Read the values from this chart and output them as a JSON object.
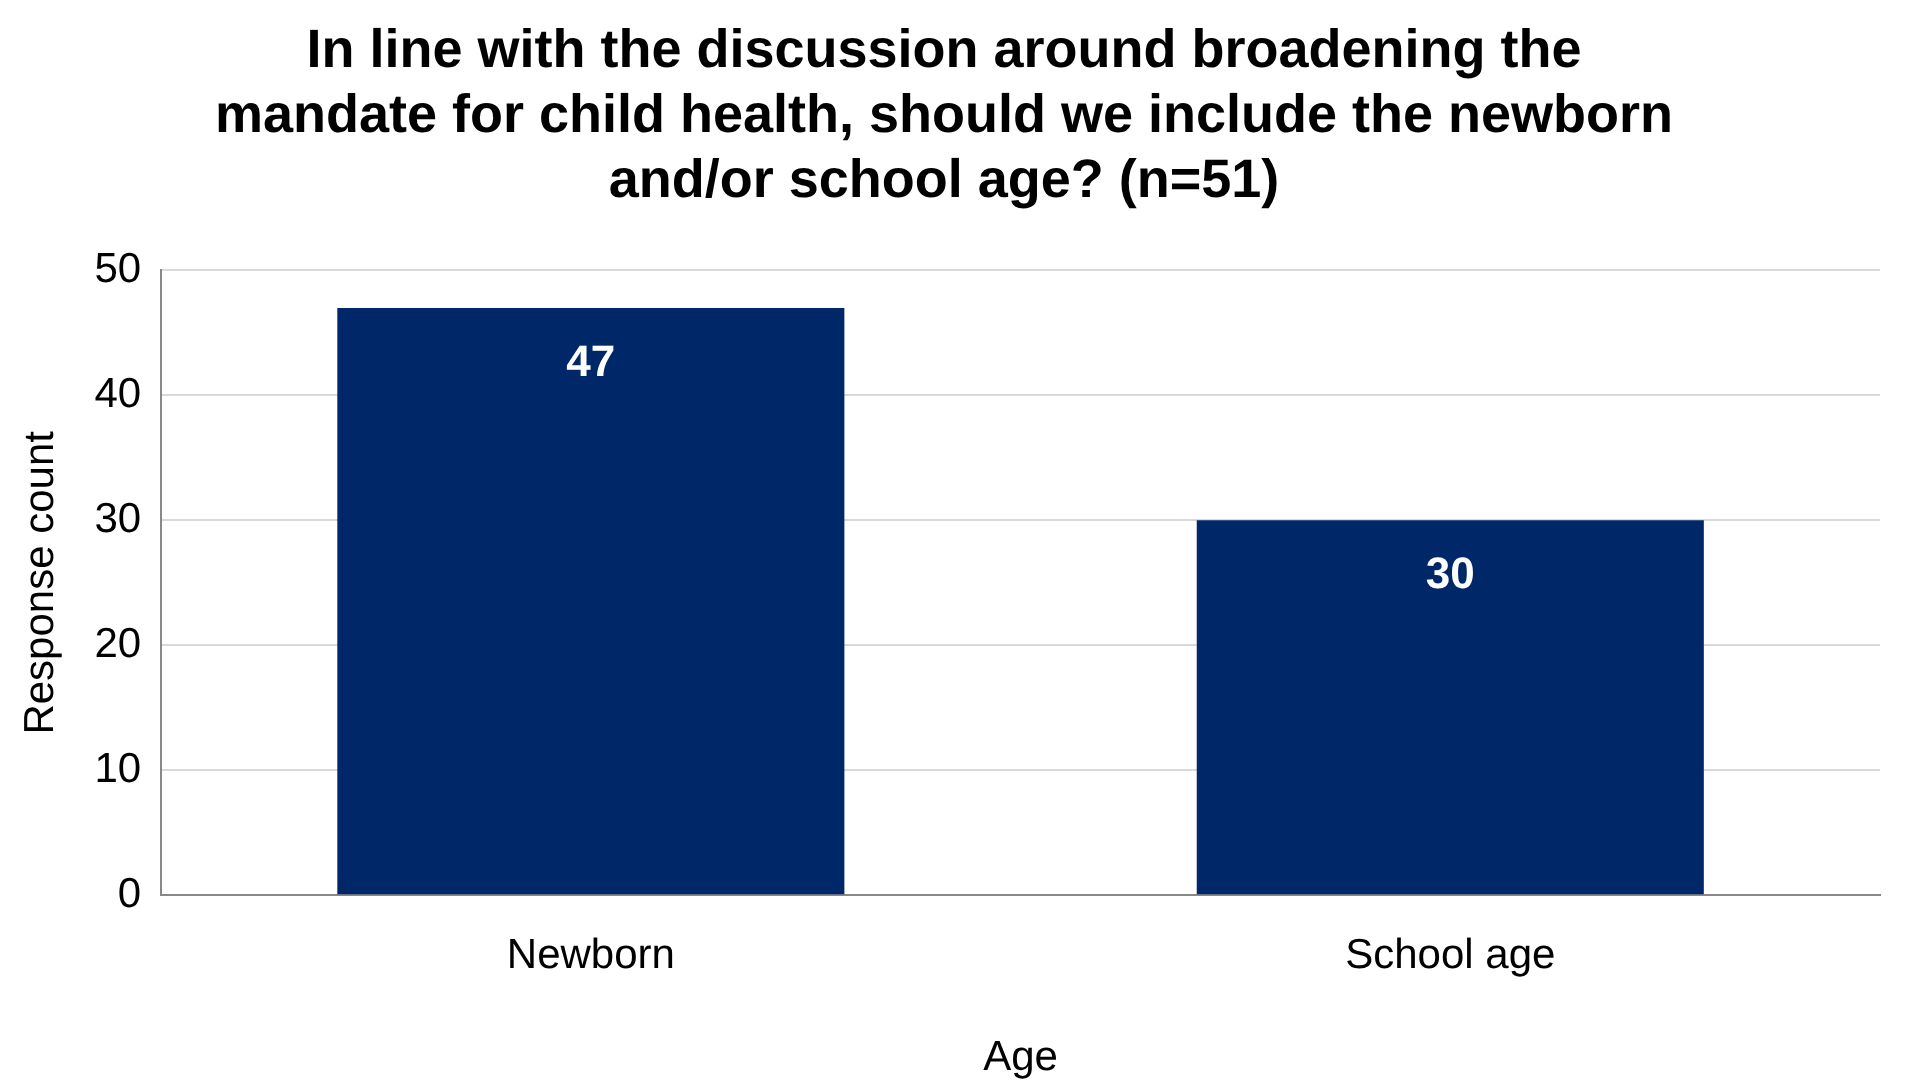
{
  "chart_data": {
    "type": "bar",
    "title": "In line with the discussion around broadening the mandate for child health, should we include the newborn and/or school age? (n=51)",
    "xlabel": "Age",
    "ylabel": "Response count",
    "categories": [
      "Newborn",
      "School age"
    ],
    "values": [
      47,
      30
    ],
    "color": "#002868",
    "ylim": [
      0,
      50
    ],
    "yticks": [
      0,
      10,
      20,
      30,
      40,
      50
    ],
    "grid": "y",
    "data_labels": true,
    "legend": false
  }
}
